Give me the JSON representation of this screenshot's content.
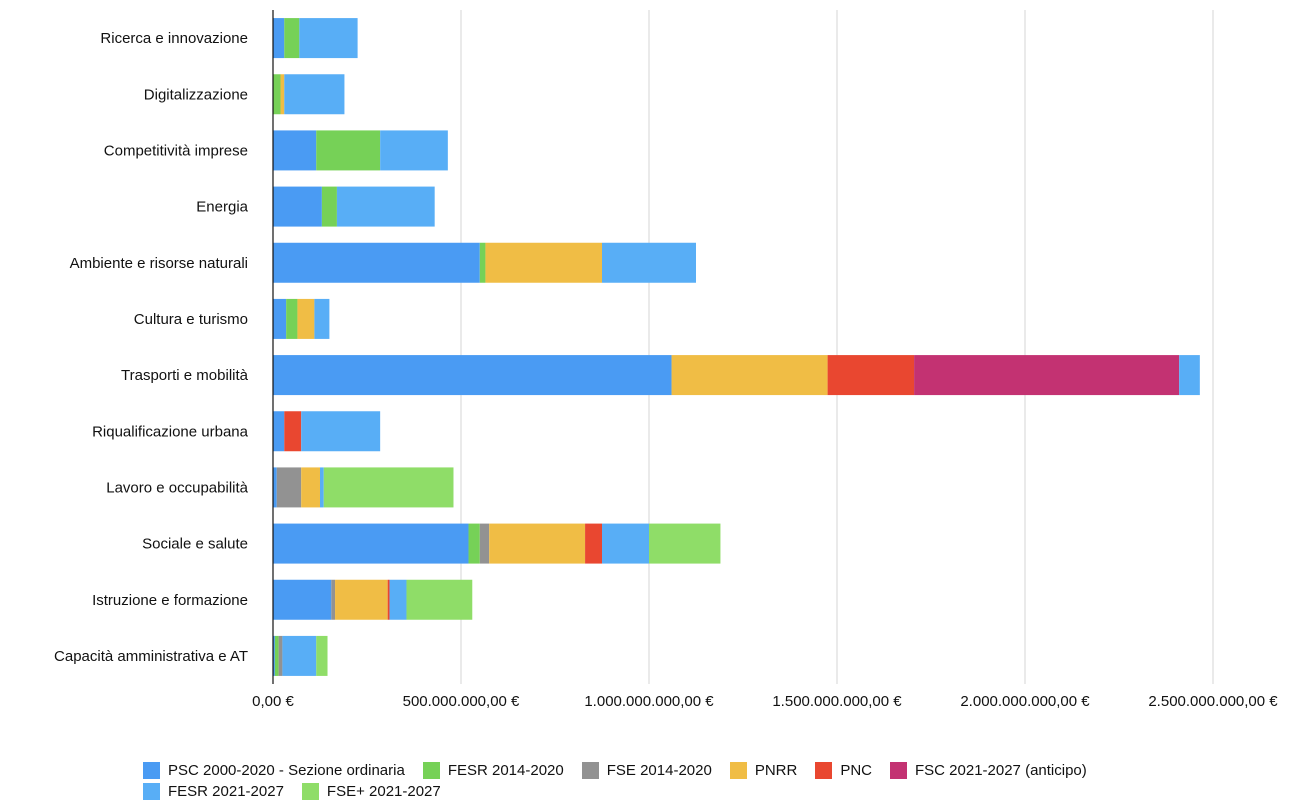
{
  "chart_data": {
    "type": "bar",
    "orientation": "horizontal",
    "stacked": true,
    "categories": [
      "Ricerca e innovazione",
      "Digitalizzazione",
      "Competitività imprese",
      "Energia",
      "Ambiente e risorse naturali",
      "Cultura e turismo",
      "Trasporti e mobilità",
      "Riqualificazione urbana",
      "Lavoro e occupabilità",
      "Sociale e salute",
      "Istruzione e formazione",
      "Capacità amministrativa e AT"
    ],
    "series": [
      {
        "name": "PSC 2000-2020 - Sezione ordinaria",
        "color": "#4a9bf3",
        "values": [
          30000000,
          0,
          115000000,
          130000000,
          550000000,
          35000000,
          1060000000,
          30000000,
          10000000,
          520000000,
          155000000,
          5000000
        ]
      },
      {
        "name": "FESR 2014-2020",
        "color": "#76d157",
        "values": [
          40000000,
          20000000,
          170000000,
          40000000,
          15000000,
          30000000,
          0,
          0,
          0,
          30000000,
          0,
          10000000
        ]
      },
      {
        "name": "FSE 2014-2020",
        "color": "#929292",
        "values": [
          0,
          0,
          0,
          0,
          0,
          0,
          0,
          0,
          65000000,
          25000000,
          10000000,
          10000000
        ]
      },
      {
        "name": "PNRR",
        "color": "#f0bd45",
        "values": [
          0,
          10000000,
          0,
          0,
          310000000,
          45000000,
          415000000,
          0,
          50000000,
          255000000,
          140000000,
          0
        ]
      },
      {
        "name": "PNC",
        "color": "#e94730",
        "values": [
          0,
          0,
          0,
          0,
          0,
          0,
          230000000,
          45000000,
          0,
          45000000,
          5000000,
          0
        ]
      },
      {
        "name": "FSC 2021-2027 (anticipo)",
        "color": "#c33272",
        "values": [
          0,
          0,
          0,
          0,
          0,
          0,
          705000000,
          0,
          0,
          0,
          0,
          0
        ]
      },
      {
        "name": "FESR 2021-2027",
        "color": "#58aef6",
        "values": [
          155000000,
          160000000,
          180000000,
          260000000,
          250000000,
          40000000,
          55000000,
          210000000,
          10000000,
          125000000,
          45000000,
          90000000
        ]
      },
      {
        "name": "FSE+ 2021-2027",
        "color": "#8fdd68",
        "values": [
          0,
          0,
          0,
          0,
          0,
          0,
          0,
          0,
          345000000,
          190000000,
          175000000,
          30000000
        ]
      }
    ],
    "ticks": [
      {
        "value": 0,
        "label": "0,00 €"
      },
      {
        "value": 500000000,
        "label": "500.000.000,00 €"
      },
      {
        "value": 1000000000,
        "label": "1.000.000.000,00 €"
      },
      {
        "value": 1500000000,
        "label": "1.500.000.000,00 €"
      },
      {
        "value": 2000000000,
        "label": "2.000.000.000,00 €"
      },
      {
        "value": 2500000000,
        "label": "2.500.000.000,00 €"
      }
    ],
    "xlim": [
      0,
      2500000000
    ],
    "grid": "vertical",
    "legend_position": "bottom",
    "legend_rows": [
      [
        0,
        1,
        2,
        3,
        4,
        5
      ],
      [
        6,
        7
      ]
    ]
  }
}
